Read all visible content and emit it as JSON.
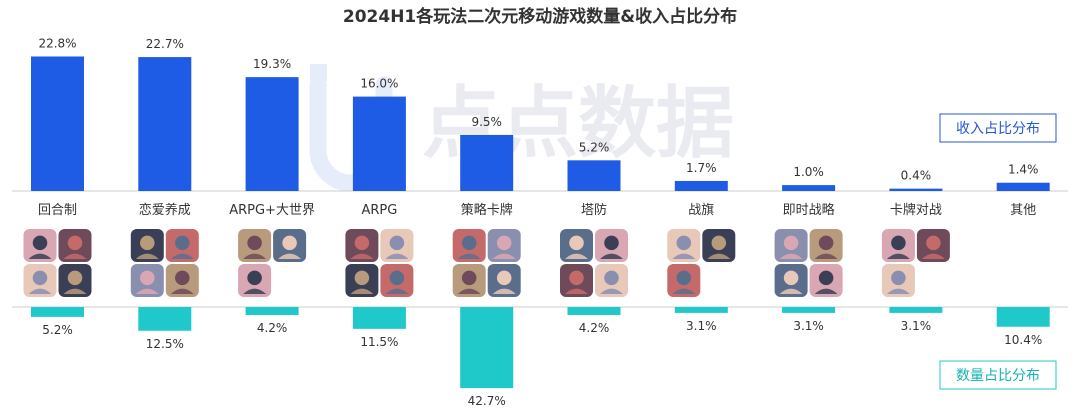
{
  "chart_data": {
    "type": "bar",
    "title": "2024H1各玩法二次元移动游戏数量&收入占比分布",
    "categories": [
      "回合制",
      "恋爱养成",
      "ARPG+大世界",
      "ARPG",
      "策略卡牌",
      "塔防",
      "战旗",
      "即时战略",
      "卡牌对战",
      "其他"
    ],
    "series": [
      {
        "name": "收入占比分布",
        "values": [
          22.8,
          22.7,
          19.3,
          16.0,
          9.5,
          5.2,
          1.7,
          1.0,
          0.4,
          1.4
        ],
        "labels": [
          "22.8%",
          "22.7%",
          "19.3%",
          "16.0%",
          "9.5%",
          "5.2%",
          "1.7%",
          "1.0%",
          "0.4%",
          "1.4%"
        ],
        "color": "#1f5ce6",
        "direction": "up"
      },
      {
        "name": "数量占比分布",
        "values": [
          5.2,
          12.5,
          4.2,
          11.5,
          42.7,
          4.2,
          3.1,
          3.1,
          3.1,
          10.4
        ],
        "labels": [
          "5.2%",
          "12.5%",
          "4.2%",
          "11.5%",
          "42.7%",
          "4.2%",
          "3.1%",
          "3.1%",
          "3.1%",
          "10.4%"
        ],
        "color": "#1fc9c9",
        "direction": "down"
      }
    ],
    "watermark": "点点数据",
    "legend_position": "right",
    "icon_counts": [
      4,
      4,
      3,
      4,
      4,
      4,
      3,
      4,
      3,
      0
    ]
  }
}
